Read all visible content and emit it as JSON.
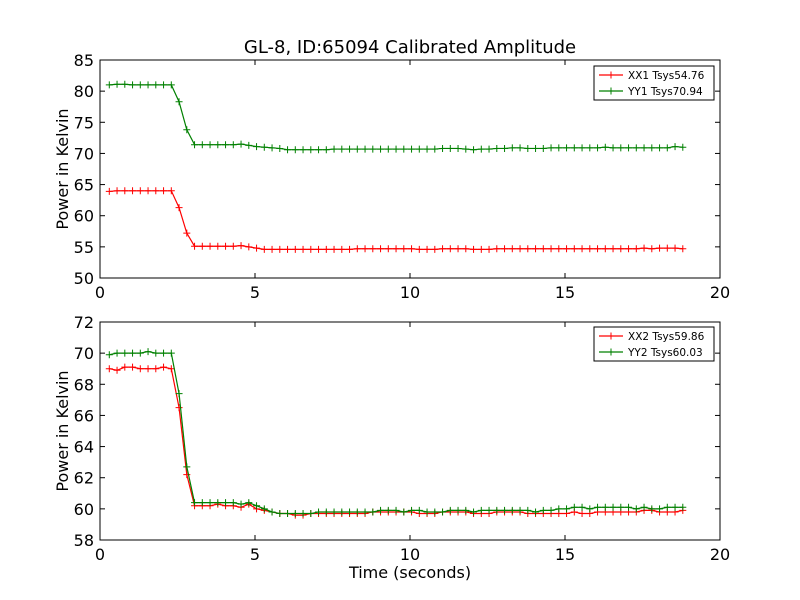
{
  "figure": {
    "title": "GL-8, ID:65094 Calibrated Amplitude"
  },
  "chart_data": [
    {
      "type": "line",
      "title": "GL-8, ID:65094 Calibrated Amplitude",
      "xlabel": "",
      "ylabel": "Power in Kelvin",
      "xlim": [
        0,
        20
      ],
      "ylim": [
        50,
        85
      ],
      "xticks": [
        0,
        5,
        10,
        15,
        20
      ],
      "yticks": [
        50,
        55,
        60,
        65,
        70,
        75,
        80,
        85
      ],
      "grid": false,
      "legend_position": "top-right",
      "series": [
        {
          "name": "XX1 Tsys54.76",
          "color": "#ff0000",
          "x": [
            0.3,
            0.55,
            0.8,
            1.05,
            1.3,
            1.55,
            1.8,
            2.05,
            2.3,
            2.55,
            2.8,
            3.05,
            3.3,
            3.55,
            3.8,
            4.05,
            4.3,
            4.55,
            4.8,
            5.05,
            5.3,
            5.55,
            5.8,
            6.05,
            6.3,
            6.55,
            6.8,
            7.05,
            7.3,
            7.55,
            7.8,
            8.05,
            8.3,
            8.55,
            8.8,
            9.05,
            9.3,
            9.55,
            9.8,
            10.05,
            10.3,
            10.55,
            10.8,
            11.05,
            11.3,
            11.55,
            11.8,
            12.05,
            12.3,
            12.55,
            12.8,
            13.05,
            13.3,
            13.55,
            13.8,
            14.05,
            14.3,
            14.55,
            14.8,
            15.05,
            15.3,
            15.55,
            15.8,
            16.05,
            16.3,
            16.55,
            16.8,
            17.05,
            17.3,
            17.55,
            17.8,
            18.05,
            18.3,
            18.55,
            18.8
          ],
          "values": [
            63.9,
            64.0,
            64.0,
            64.0,
            64.0,
            64.0,
            64.0,
            64.0,
            64.0,
            61.3,
            57.2,
            55.1,
            55.1,
            55.1,
            55.1,
            55.1,
            55.1,
            55.2,
            55.0,
            54.8,
            54.6,
            54.6,
            54.6,
            54.6,
            54.6,
            54.6,
            54.6,
            54.6,
            54.6,
            54.6,
            54.6,
            54.6,
            54.7,
            54.7,
            54.7,
            54.7,
            54.7,
            54.7,
            54.7,
            54.7,
            54.6,
            54.6,
            54.6,
            54.7,
            54.7,
            54.7,
            54.7,
            54.6,
            54.6,
            54.6,
            54.7,
            54.7,
            54.7,
            54.7,
            54.7,
            54.7,
            54.7,
            54.7,
            54.7,
            54.7,
            54.7,
            54.7,
            54.7,
            54.7,
            54.7,
            54.7,
            54.7,
            54.7,
            54.7,
            54.8,
            54.7,
            54.8,
            54.8,
            54.8,
            54.7
          ]
        },
        {
          "name": "YY1 Tsys70.94",
          "color": "#008000",
          "x": [
            0.3,
            0.55,
            0.8,
            1.05,
            1.3,
            1.55,
            1.8,
            2.05,
            2.3,
            2.55,
            2.8,
            3.05,
            3.3,
            3.55,
            3.8,
            4.05,
            4.3,
            4.55,
            4.8,
            5.05,
            5.3,
            5.55,
            5.8,
            6.05,
            6.3,
            6.55,
            6.8,
            7.05,
            7.3,
            7.55,
            7.8,
            8.05,
            8.3,
            8.55,
            8.8,
            9.05,
            9.3,
            9.55,
            9.8,
            10.05,
            10.3,
            10.55,
            10.8,
            11.05,
            11.3,
            11.55,
            11.8,
            12.05,
            12.3,
            12.55,
            12.8,
            13.05,
            13.3,
            13.55,
            13.8,
            14.05,
            14.3,
            14.55,
            14.8,
            15.05,
            15.3,
            15.55,
            15.8,
            16.05,
            16.3,
            16.55,
            16.8,
            17.05,
            17.3,
            17.55,
            17.8,
            18.05,
            18.3,
            18.55,
            18.8
          ],
          "values": [
            81.0,
            81.1,
            81.1,
            81.0,
            81.0,
            81.0,
            81.0,
            81.0,
            81.0,
            78.3,
            73.8,
            71.4,
            71.4,
            71.4,
            71.4,
            71.4,
            71.4,
            71.5,
            71.3,
            71.1,
            71.0,
            70.9,
            70.8,
            70.6,
            70.6,
            70.6,
            70.6,
            70.6,
            70.6,
            70.7,
            70.7,
            70.7,
            70.7,
            70.7,
            70.7,
            70.7,
            70.7,
            70.7,
            70.7,
            70.7,
            70.7,
            70.7,
            70.7,
            70.8,
            70.8,
            70.8,
            70.7,
            70.6,
            70.7,
            70.7,
            70.8,
            70.8,
            70.9,
            70.9,
            70.8,
            70.8,
            70.8,
            70.9,
            70.9,
            70.9,
            70.9,
            70.9,
            70.9,
            70.9,
            71.0,
            70.9,
            70.9,
            70.9,
            70.9,
            70.9,
            70.9,
            70.9,
            70.9,
            71.1,
            71.0
          ]
        }
      ]
    },
    {
      "type": "line",
      "title": "",
      "xlabel": "Time (seconds)",
      "ylabel": "Power in Kelvin",
      "xlim": [
        0,
        20
      ],
      "ylim": [
        58,
        72
      ],
      "xticks": [
        0,
        5,
        10,
        15,
        20
      ],
      "yticks": [
        58,
        60,
        62,
        64,
        66,
        68,
        70,
        72
      ],
      "grid": false,
      "legend_position": "top-right",
      "series": [
        {
          "name": "XX2 Tsys59.86",
          "color": "#ff0000",
          "x": [
            0.3,
            0.55,
            0.8,
            1.05,
            1.3,
            1.55,
            1.8,
            2.05,
            2.3,
            2.55,
            2.8,
            3.05,
            3.3,
            3.55,
            3.8,
            4.05,
            4.3,
            4.55,
            4.8,
            5.05,
            5.3,
            5.55,
            5.8,
            6.05,
            6.3,
            6.55,
            6.8,
            7.05,
            7.3,
            7.55,
            7.8,
            8.05,
            8.3,
            8.55,
            8.8,
            9.05,
            9.3,
            9.55,
            9.8,
            10.05,
            10.3,
            10.55,
            10.8,
            11.05,
            11.3,
            11.55,
            11.8,
            12.05,
            12.3,
            12.55,
            12.8,
            13.05,
            13.3,
            13.55,
            13.8,
            14.05,
            14.3,
            14.55,
            14.8,
            15.05,
            15.3,
            15.55,
            15.8,
            16.05,
            16.3,
            16.55,
            16.8,
            17.05,
            17.3,
            17.55,
            17.8,
            18.05,
            18.3,
            18.55,
            18.8
          ],
          "values": [
            69.0,
            68.9,
            69.1,
            69.1,
            69.0,
            69.0,
            69.0,
            69.1,
            69.0,
            66.5,
            62.2,
            60.2,
            60.2,
            60.2,
            60.3,
            60.2,
            60.2,
            60.1,
            60.3,
            60.0,
            59.9,
            59.8,
            59.7,
            59.7,
            59.6,
            59.6,
            59.7,
            59.7,
            59.7,
            59.7,
            59.7,
            59.7,
            59.7,
            59.7,
            59.8,
            59.8,
            59.8,
            59.8,
            59.8,
            59.8,
            59.7,
            59.7,
            59.7,
            59.8,
            59.8,
            59.8,
            59.8,
            59.7,
            59.7,
            59.7,
            59.8,
            59.8,
            59.8,
            59.8,
            59.7,
            59.7,
            59.7,
            59.7,
            59.7,
            59.7,
            59.8,
            59.7,
            59.7,
            59.8,
            59.8,
            59.8,
            59.8,
            59.8,
            59.8,
            59.9,
            59.9,
            59.8,
            59.8,
            59.8,
            59.9
          ]
        },
        {
          "name": "YY2 Tsys60.03",
          "color": "#008000",
          "x": [
            0.3,
            0.55,
            0.8,
            1.05,
            1.3,
            1.55,
            1.8,
            2.05,
            2.3,
            2.55,
            2.8,
            3.05,
            3.3,
            3.55,
            3.8,
            4.05,
            4.3,
            4.55,
            4.8,
            5.05,
            5.3,
            5.55,
            5.8,
            6.05,
            6.3,
            6.55,
            6.8,
            7.05,
            7.3,
            7.55,
            7.8,
            8.05,
            8.3,
            8.55,
            8.8,
            9.05,
            9.3,
            9.55,
            9.8,
            10.05,
            10.3,
            10.55,
            10.8,
            11.05,
            11.3,
            11.55,
            11.8,
            12.05,
            12.3,
            12.55,
            12.8,
            13.05,
            13.3,
            13.55,
            13.8,
            14.05,
            14.3,
            14.55,
            14.8,
            15.05,
            15.3,
            15.55,
            15.8,
            16.05,
            16.3,
            16.55,
            16.8,
            17.05,
            17.3,
            17.55,
            17.8,
            18.05,
            18.3,
            18.55,
            18.8
          ],
          "values": [
            69.9,
            70.0,
            70.0,
            70.0,
            70.0,
            70.1,
            70.0,
            70.0,
            70.0,
            67.4,
            62.7,
            60.4,
            60.4,
            60.4,
            60.4,
            60.4,
            60.4,
            60.3,
            60.4,
            60.2,
            60.0,
            59.8,
            59.7,
            59.7,
            59.7,
            59.7,
            59.7,
            59.8,
            59.8,
            59.8,
            59.8,
            59.8,
            59.8,
            59.8,
            59.8,
            59.9,
            59.9,
            59.9,
            59.8,
            59.9,
            59.9,
            59.8,
            59.8,
            59.8,
            59.9,
            59.9,
            59.9,
            59.8,
            59.9,
            59.9,
            59.9,
            59.9,
            59.9,
            59.9,
            59.9,
            59.8,
            59.9,
            59.9,
            60.0,
            60.0,
            60.1,
            60.1,
            60.0,
            60.1,
            60.1,
            60.1,
            60.1,
            60.1,
            60.0,
            60.1,
            60.0,
            60.0,
            60.1,
            60.1,
            60.1
          ]
        }
      ]
    }
  ]
}
